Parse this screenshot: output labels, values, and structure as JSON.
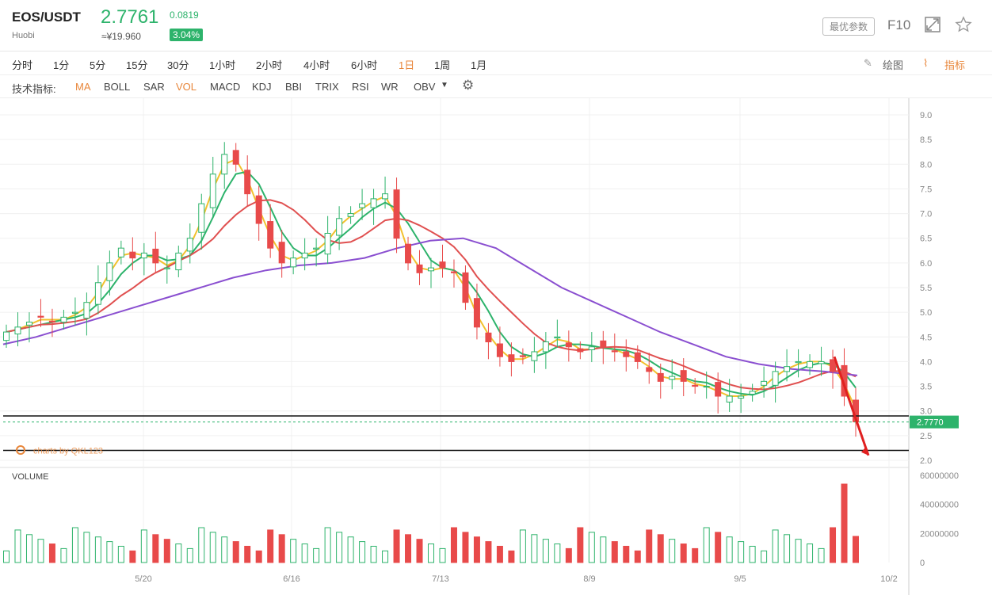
{
  "header": {
    "pair": "EOS/USDT",
    "exchange": "Huobi",
    "price": "2.7761",
    "cny": "≈¥19.960",
    "change": "0.0819",
    "pct": "3.04%",
    "params_btn": "最优参数",
    "f10": "F10"
  },
  "timeframes": [
    "分时",
    "1分",
    "5分",
    "15分",
    "30分",
    "1小时",
    "2小时",
    "4小时",
    "6小时",
    "1日",
    "1周",
    "1月"
  ],
  "active_timeframe": "1日",
  "tools": {
    "draw": "绘图",
    "indicator": "指标"
  },
  "indicators": {
    "label": "技术指标:",
    "items": [
      "MA",
      "BOLL",
      "SAR",
      "VOL",
      "MACD",
      "KDJ",
      "BBI",
      "TRIX",
      "RSI",
      "WR",
      "OBV"
    ],
    "active": [
      "MA",
      "VOL"
    ]
  },
  "colors": {
    "up": "#2db36b",
    "down": "#e84a4a",
    "accent": "#e8863a",
    "ma5": "#f2c12e",
    "ma10": "#2db36b",
    "ma30": "#e05050",
    "ma60": "#8a4fd0"
  },
  "chart_data": {
    "type": "candlestick",
    "watermark": "charts by QKL123",
    "last_price_label": "2.7770",
    "y_ticks": [
      "9.0",
      "8.5",
      "8.0",
      "7.5",
      "7.0",
      "6.5",
      "6.0",
      "5.5",
      "5.0",
      "4.5",
      "4.0",
      "3.5",
      "3.0",
      "2.5",
      "2.0"
    ],
    "ylim": [
      2.0,
      9.0
    ],
    "x_ticks": [
      "5/20",
      "6/16",
      "7/13",
      "8/9",
      "9/5",
      "10/2"
    ],
    "horizontal_lines": [
      2.9,
      2.2
    ],
    "price_path": [
      4.6,
      4.7,
      4.8,
      4.9,
      4.8,
      4.9,
      5.0,
      5.2,
      5.6,
      6.0,
      6.3,
      6.1,
      6.2,
      6.0,
      5.9,
      6.2,
      6.5,
      7.2,
      7.8,
      8.2,
      8.0,
      7.4,
      6.8,
      6.3,
      6.0,
      6.1,
      6.2,
      6.3,
      6.6,
      6.9,
      7.0,
      7.2,
      7.3,
      7.4,
      6.5,
      6.0,
      5.8,
      5.9,
      5.9,
      5.8,
      5.2,
      4.7,
      4.4,
      4.1,
      4.0,
      4.1,
      4.2,
      4.4,
      4.5,
      4.3,
      4.2,
      4.3,
      4.3,
      4.2,
      4.1,
      4.0,
      3.8,
      3.6,
      3.7,
      3.6,
      3.5,
      3.5,
      3.3,
      3.3,
      3.3,
      3.4,
      3.6,
      3.8,
      3.9,
      4.0,
      4.0,
      4.0,
      3.8,
      3.3,
      2.78
    ],
    "ma60": [
      4.35,
      4.5,
      4.7,
      4.9,
      5.1,
      5.3,
      5.5,
      5.7,
      5.85,
      5.95,
      6.0,
      6.1,
      6.3,
      6.45,
      6.5,
      6.3,
      5.9,
      5.5,
      5.2,
      4.9,
      4.6,
      4.35,
      4.1,
      3.95,
      3.85,
      3.8,
      3.72
    ],
    "volume": {
      "ylim": [
        0,
        60000000
      ],
      "ticks": [
        "60000000",
        "40000000",
        "20000000",
        "0"
      ],
      "label": "VOLUME"
    }
  }
}
